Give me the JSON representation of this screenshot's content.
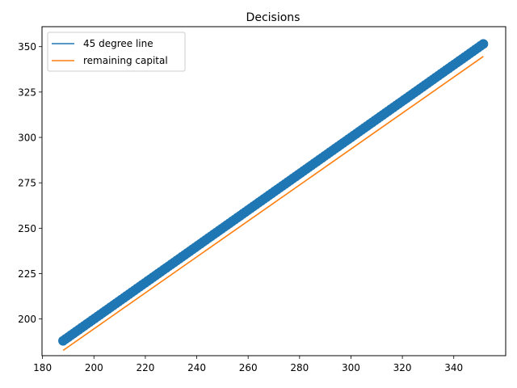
{
  "chart_data": {
    "type": "scatter",
    "title": "Decisions",
    "xlabel": "",
    "ylabel": "",
    "xlim": [
      179.8,
      360.2
    ],
    "ylim": [
      179.8,
      361.0
    ],
    "x_ticks": [
      180,
      200,
      220,
      240,
      260,
      280,
      300,
      320,
      340
    ],
    "y_ticks": [
      200,
      225,
      250,
      275,
      300,
      325,
      350
    ],
    "grid": false,
    "legend_position": "upper-left",
    "scatter": {
      "x_start": 188,
      "x_end": 351.5,
      "count": 160,
      "color": "#1f77b4",
      "marker_radius": 6
    },
    "series": [
      {
        "name": "45 degree line",
        "color": "#1f77b4",
        "x": [
          188,
          351.5
        ],
        "y": [
          188,
          351.5
        ]
      },
      {
        "name": "remaining capital",
        "color": "#ff7f0e",
        "x": [
          188,
          351.5
        ],
        "y": [
          182.7,
          344.6
        ]
      }
    ]
  }
}
